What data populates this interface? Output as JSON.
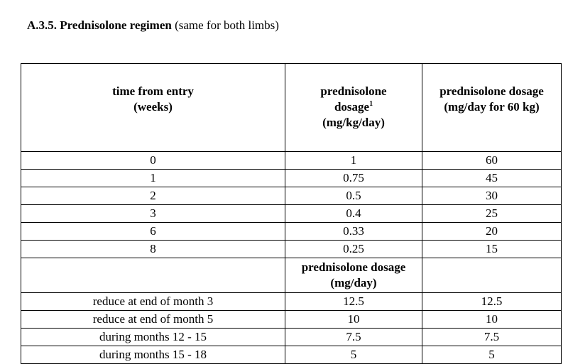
{
  "heading": {
    "number": "A.3.5.",
    "title": "Prednisolone regimen",
    "note": "(same for both limbs)"
  },
  "table": {
    "header": {
      "col1": [
        "time from entry",
        "(weeks)"
      ],
      "col2": [
        "prednisolone",
        "dosage",
        "(mg/kg/day)"
      ],
      "col2_footnote": "1",
      "col3": [
        "prednisolone dosage",
        "(mg/day for 60 kg)"
      ]
    },
    "weekly_rows": [
      {
        "time": "0",
        "mgkg": "1",
        "mgday": "60"
      },
      {
        "time": "1",
        "mgkg": "0.75",
        "mgday": "45"
      },
      {
        "time": "2",
        "mgkg": "0.5",
        "mgday": "30"
      },
      {
        "time": "3",
        "mgkg": "0.4",
        "mgday": "25"
      },
      {
        "time": "6",
        "mgkg": "0.33",
        "mgday": "20"
      },
      {
        "time": "8",
        "mgkg": "0.25",
        "mgday": "15"
      }
    ],
    "subheader": {
      "col2": [
        "prednisolone dosage",
        "(mg/day)"
      ]
    },
    "monthly_rows": [
      {
        "time": "reduce at end of month 3",
        "dose": "12.5",
        "dose2": "12.5"
      },
      {
        "time": "reduce at end of month 5",
        "dose": "10",
        "dose2": "10"
      },
      {
        "time": "during months 12 - 15",
        "dose": "7.5",
        "dose2": "7.5"
      },
      {
        "time": "during months 15 - 18",
        "dose": "5",
        "dose2": "5"
      }
    ]
  }
}
